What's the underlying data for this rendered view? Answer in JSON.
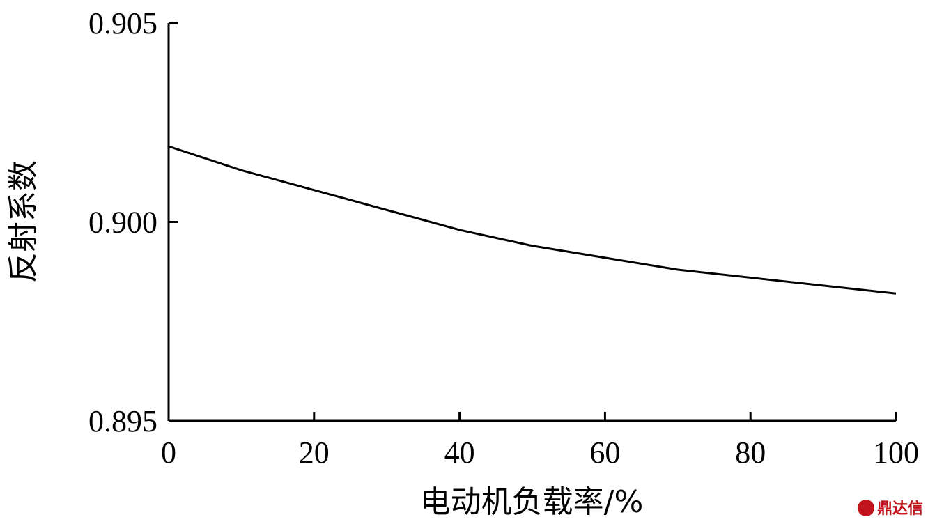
{
  "chart_data": {
    "type": "line",
    "title": "",
    "xlabel": "电动机负载率/%",
    "ylabel": "反射系数",
    "xlim": [
      0,
      100
    ],
    "ylim": [
      0.895,
      0.905
    ],
    "x_ticks": [
      "0",
      "20",
      "40",
      "60",
      "80",
      "100"
    ],
    "y_ticks": [
      "0.895",
      "0.900",
      "0.905"
    ],
    "grid": false,
    "series": [
      {
        "x": [
          0,
          10,
          20,
          30,
          40,
          50,
          60,
          70,
          80,
          90,
          100
        ],
        "values": [
          0.9019,
          0.9013,
          0.9008,
          0.9003,
          0.8998,
          0.8994,
          0.8991,
          0.8988,
          0.8986,
          0.8984,
          0.8982
        ]
      }
    ],
    "line_color": "#000000"
  },
  "watermark": {
    "text": "鼎达信",
    "color": "#c0141c"
  }
}
